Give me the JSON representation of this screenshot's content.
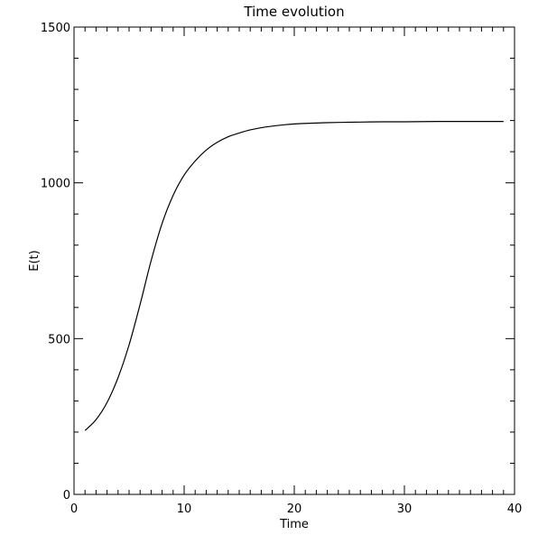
{
  "chart_data": {
    "type": "line",
    "title": "Time evolution",
    "xlabel": "Time",
    "ylabel": "E(t)",
    "xlim": [
      0,
      40
    ],
    "ylim": [
      0,
      1500
    ],
    "x_ticks": [
      0,
      10,
      20,
      30,
      40
    ],
    "y_ticks": [
      0,
      500,
      1000,
      1500
    ],
    "x_minor_step": 1,
    "y_minor_step": 100,
    "grid": false,
    "series": [
      {
        "color": "#000000",
        "x": [
          1,
          2,
          3,
          4,
          5,
          6,
          7,
          8,
          9,
          10,
          11,
          12,
          13,
          14,
          15,
          16,
          17,
          18,
          19,
          20,
          22,
          24,
          26,
          28,
          30,
          33,
          36,
          39
        ],
        "y": [
          205,
          240,
          295,
          375,
          480,
          610,
          750,
          870,
          960,
          1025,
          1070,
          1105,
          1130,
          1148,
          1160,
          1170,
          1177,
          1182,
          1186,
          1189,
          1192,
          1194,
          1195,
          1196,
          1196,
          1197,
          1197,
          1197
        ]
      }
    ]
  }
}
